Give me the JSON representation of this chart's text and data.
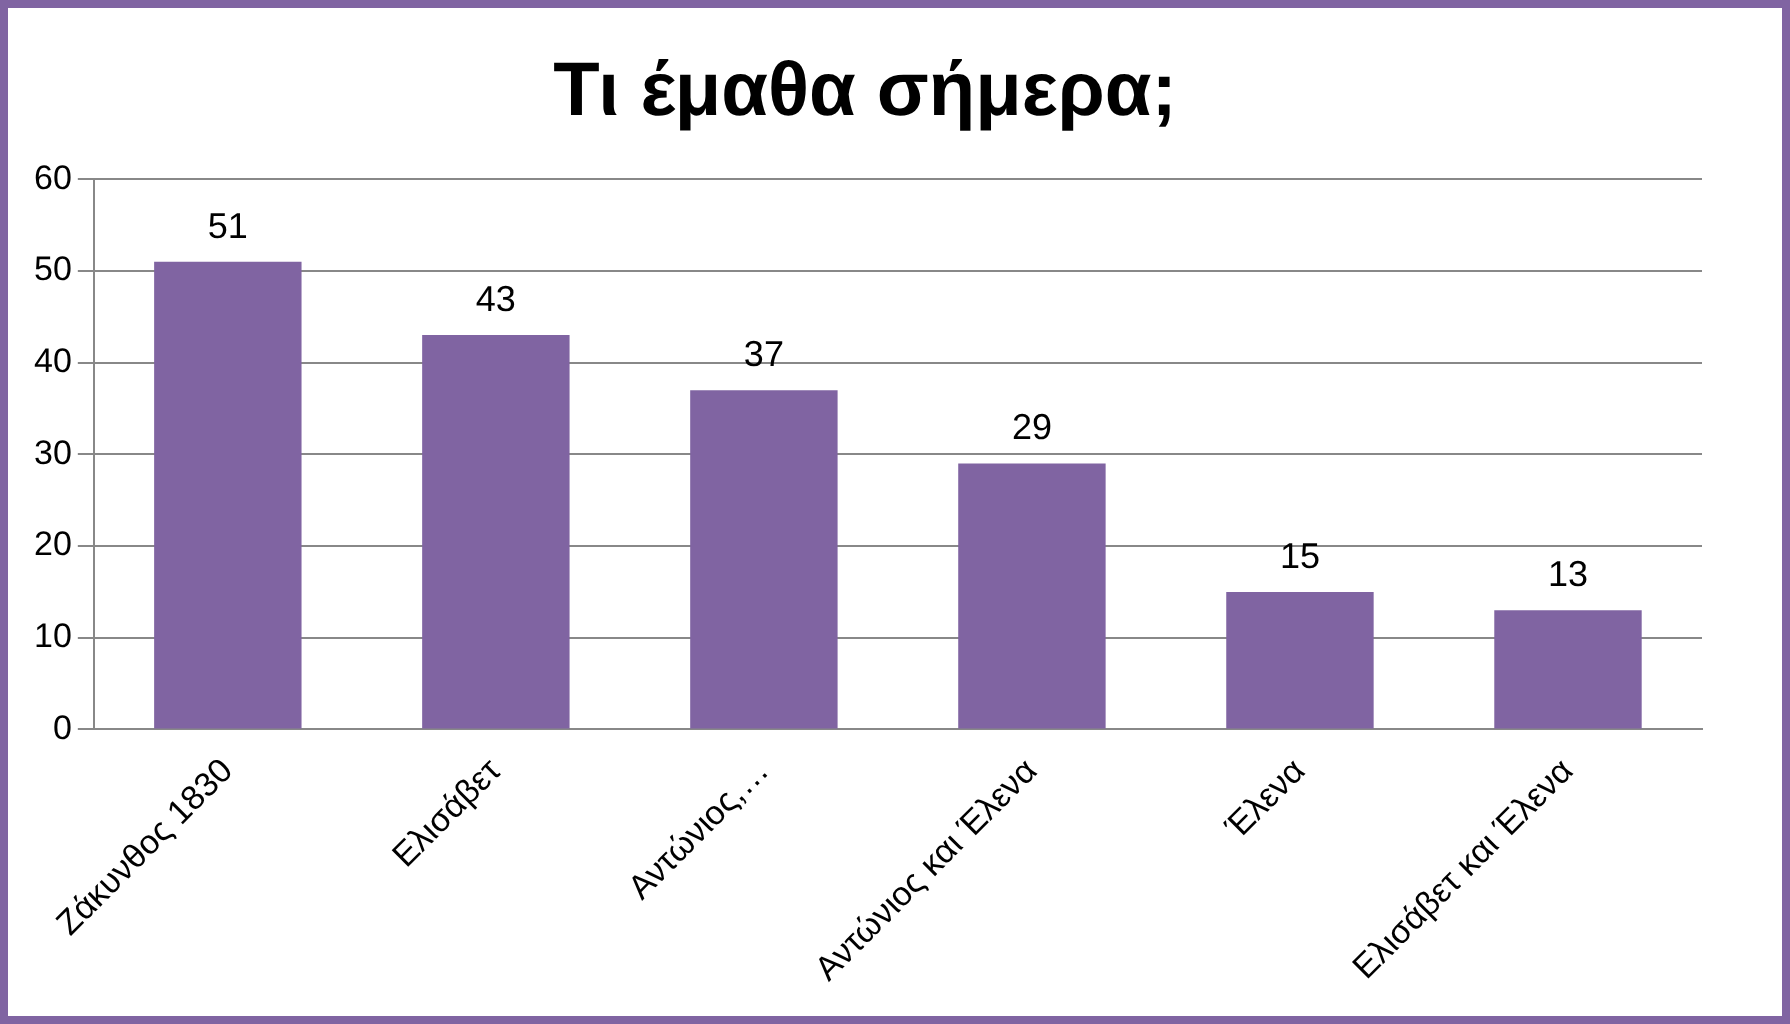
{
  "chart_data": {
    "type": "bar",
    "title": "Τι έμαθα σήμερα;",
    "categories": [
      "Ζάκυνθος 1830",
      "Ελισάβετ",
      "Αντώνιος,…",
      "Αντώνιος και Έλενα",
      "Έλενα",
      "Ελισάβετ και Έλενα"
    ],
    "values": [
      51,
      43,
      37,
      29,
      15,
      13
    ],
    "color": "#8064a2",
    "ylim": [
      0,
      60
    ],
    "yticks": [
      0,
      10,
      20,
      30,
      40,
      50,
      60
    ],
    "grid": "y",
    "legend": false,
    "data_labels": true
  }
}
